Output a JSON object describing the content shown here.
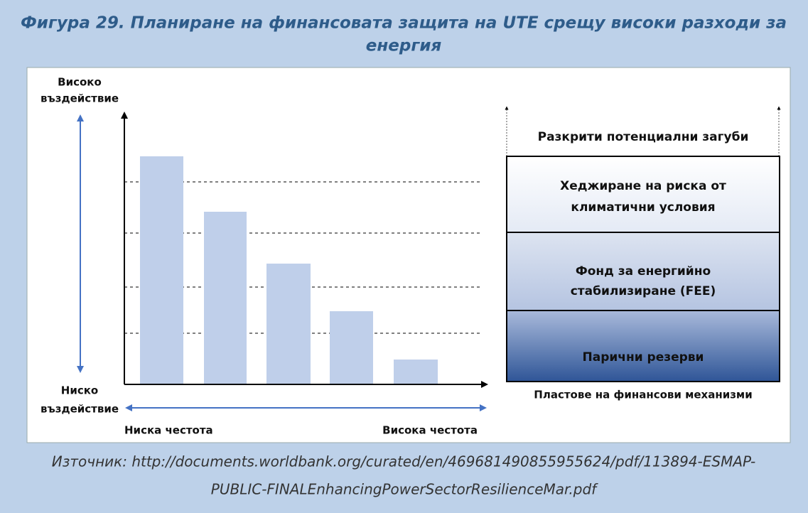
{
  "header": {
    "title_lines": [
      "Фигура 29. Планиране на финансовата защита на UTE срещу високи разходи за",
      "енергия"
    ]
  },
  "left_chart": {
    "y_top_label": [
      "Високо",
      "въздействие"
    ],
    "y_bottom_label": [
      "Ниско",
      "въздействие"
    ],
    "x_left_label": "Ниска честота",
    "x_right_label": "Висока честота"
  },
  "right_diagram": {
    "top_label": "Разкрити потенциални загуби",
    "layers": [
      {
        "lines": [
          "Хеджиране на риска от",
          "климатични условия"
        ]
      },
      {
        "lines": [
          "Фонд за енергийно",
          "стабилизиране (FEE)"
        ]
      },
      {
        "lines": [
          "Парични резерви"
        ]
      }
    ],
    "bottom_label": "Пластове на финансови механизми"
  },
  "source": {
    "lines": [
      "Източник: http://documents.worldbank.org/curated/en/469681490855955624/pdf/113894-ESMAP-",
      "PUBLIC-FINALEnhancingPowerSectorResilienceMar.pdf"
    ]
  }
}
